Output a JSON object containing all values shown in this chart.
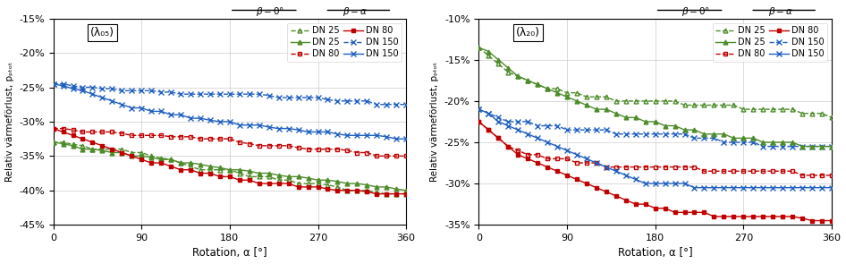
{
  "xlabel": "Rotation, α [°]",
  "ylabel": "Relativ värmeforlust, p_qtot",
  "xticks": [
    0,
    90,
    180,
    270,
    360
  ],
  "green": "#4d8c2a",
  "red": "#c00000",
  "blue": "#2060c0",
  "left": {
    "label": "(λ₀₅)",
    "ylim": [
      -45,
      -15
    ],
    "yticks": [
      -45,
      -40,
      -35,
      -30,
      -25,
      -20,
      -15
    ],
    "dn25_b0": [
      -33.0,
      -33.0,
      -33.3,
      -33.5,
      -34.0,
      -34.0,
      -34.0,
      -34.0,
      -34.5,
      -34.5,
      -35.0,
      -35.3,
      -35.5,
      -36.0,
      -36.5,
      -37.0,
      -37.0,
      -37.0,
      -37.0,
      -37.5,
      -38.0,
      -38.0,
      -38.0,
      -38.5,
      -38.5,
      -39.0,
      -39.0,
      -39.0,
      -39.2,
      -39.5,
      -40.0,
      -40.0,
      -40.0,
      -40.3,
      -40.5,
      -40.5,
      -40.5
    ],
    "dn80_b0": [
      -31.0,
      -31.0,
      -31.2,
      -31.5,
      -31.5,
      -31.5,
      -31.5,
      -31.7,
      -32.0,
      -32.0,
      -32.0,
      -32.0,
      -32.2,
      -32.2,
      -32.2,
      -32.5,
      -32.5,
      -32.5,
      -32.5,
      -33.0,
      -33.2,
      -33.5,
      -33.5,
      -33.5,
      -33.5,
      -33.8,
      -34.0,
      -34.0,
      -34.0,
      -34.0,
      -34.2,
      -34.5,
      -34.5,
      -35.0,
      -35.0,
      -35.0,
      -35.0
    ],
    "dn150_b0": [
      -24.5,
      -24.5,
      -24.8,
      -25.0,
      -25.0,
      -25.2,
      -25.2,
      -25.5,
      -25.5,
      -25.5,
      -25.5,
      -25.7,
      -25.7,
      -26.0,
      -26.0,
      -26.0,
      -26.0,
      -26.0,
      -26.0,
      -26.0,
      -26.0,
      -26.0,
      -26.2,
      -26.5,
      -26.5,
      -26.5,
      -26.5,
      -26.5,
      -26.8,
      -27.0,
      -27.0,
      -27.0,
      -27.0,
      -27.5,
      -27.5,
      -27.5,
      -27.5
    ],
    "dn25_ba": [
      -33.0,
      -33.2,
      -33.5,
      -34.0,
      -34.0,
      -34.2,
      -34.5,
      -34.5,
      -35.0,
      -35.0,
      -35.2,
      -35.5,
      -35.5,
      -36.0,
      -36.0,
      -36.2,
      -36.5,
      -36.7,
      -37.0,
      -37.0,
      -37.2,
      -37.5,
      -37.5,
      -37.8,
      -38.0,
      -38.0,
      -38.2,
      -38.5,
      -38.5,
      -38.7,
      -39.0,
      -39.0,
      -39.2,
      -39.5,
      -39.5,
      -39.8,
      -40.0
    ],
    "dn80_ba": [
      -31.0,
      -31.5,
      -32.0,
      -32.5,
      -33.0,
      -33.5,
      -34.0,
      -34.5,
      -35.0,
      -35.5,
      -36.0,
      -36.0,
      -36.5,
      -37.0,
      -37.0,
      -37.5,
      -37.5,
      -38.0,
      -38.0,
      -38.5,
      -38.5,
      -39.0,
      -39.0,
      -39.0,
      -39.0,
      -39.5,
      -39.5,
      -39.5,
      -39.8,
      -40.0,
      -40.0,
      -40.0,
      -40.2,
      -40.5,
      -40.5,
      -40.5,
      -40.5
    ],
    "dn150_ba": [
      -24.5,
      -24.8,
      -25.2,
      -25.5,
      -26.0,
      -26.5,
      -27.0,
      -27.5,
      -28.0,
      -28.0,
      -28.5,
      -28.5,
      -29.0,
      -29.0,
      -29.5,
      -29.5,
      -29.8,
      -30.0,
      -30.0,
      -30.5,
      -30.5,
      -30.5,
      -30.8,
      -31.0,
      -31.0,
      -31.2,
      -31.5,
      -31.5,
      -31.5,
      -31.8,
      -32.0,
      -32.0,
      -32.0,
      -32.0,
      -32.2,
      -32.5,
      -32.5
    ]
  },
  "right": {
    "label": "(λ₂₀)",
    "ylim": [
      -35,
      -10
    ],
    "yticks": [
      -35,
      -30,
      -25,
      -20,
      -15,
      -10
    ],
    "dn25_b0": [
      -13.5,
      -14.5,
      -15.5,
      -16.5,
      -17.0,
      -17.5,
      -18.0,
      -18.5,
      -18.5,
      -19.0,
      -19.0,
      -19.5,
      -19.5,
      -19.5,
      -20.0,
      -20.0,
      -20.0,
      -20.0,
      -20.0,
      -20.0,
      -20.0,
      -20.5,
      -20.5,
      -20.5,
      -20.5,
      -20.5,
      -20.5,
      -21.0,
      -21.0,
      -21.0,
      -21.0,
      -21.0,
      -21.0,
      -21.5,
      -21.5,
      -21.5,
      -22.0
    ],
    "dn80_b0": [
      -22.5,
      -23.5,
      -24.5,
      -25.5,
      -26.0,
      -26.5,
      -26.5,
      -27.0,
      -27.0,
      -27.0,
      -27.5,
      -27.5,
      -27.5,
      -28.0,
      -28.0,
      -28.0,
      -28.0,
      -28.0,
      -28.0,
      -28.0,
      -28.0,
      -28.0,
      -28.0,
      -28.5,
      -28.5,
      -28.5,
      -28.5,
      -28.5,
      -28.5,
      -28.5,
      -28.5,
      -28.5,
      -28.5,
      -29.0,
      -29.0,
      -29.0,
      -29.0
    ],
    "dn150_b0": [
      -21.0,
      -21.5,
      -22.0,
      -22.5,
      -22.5,
      -22.5,
      -23.0,
      -23.0,
      -23.0,
      -23.5,
      -23.5,
      -23.5,
      -23.5,
      -23.5,
      -24.0,
      -24.0,
      -24.0,
      -24.0,
      -24.0,
      -24.0,
      -24.0,
      -24.0,
      -24.5,
      -24.5,
      -24.5,
      -25.0,
      -25.0,
      -25.0,
      -25.0,
      -25.5,
      -25.5,
      -25.5,
      -25.5,
      -25.5,
      -25.5,
      -25.5,
      -25.5
    ],
    "dn25_ba": [
      -13.5,
      -14.0,
      -15.0,
      -16.0,
      -17.0,
      -17.5,
      -18.0,
      -18.5,
      -19.0,
      -19.5,
      -20.0,
      -20.5,
      -21.0,
      -21.0,
      -21.5,
      -22.0,
      -22.0,
      -22.5,
      -22.5,
      -23.0,
      -23.0,
      -23.5,
      -23.5,
      -24.0,
      -24.0,
      -24.0,
      -24.5,
      -24.5,
      -24.5,
      -25.0,
      -25.0,
      -25.0,
      -25.0,
      -25.5,
      -25.5,
      -25.5,
      -25.5
    ],
    "dn80_ba": [
      -22.5,
      -23.5,
      -24.5,
      -25.5,
      -26.5,
      -27.0,
      -27.5,
      -28.0,
      -28.5,
      -29.0,
      -29.5,
      -30.0,
      -30.5,
      -31.0,
      -31.5,
      -32.0,
      -32.5,
      -32.5,
      -33.0,
      -33.0,
      -33.5,
      -33.5,
      -33.5,
      -33.5,
      -34.0,
      -34.0,
      -34.0,
      -34.0,
      -34.0,
      -34.0,
      -34.0,
      -34.0,
      -34.0,
      -34.2,
      -34.5,
      -34.5,
      -34.5
    ],
    "dn150_ba": [
      -21.0,
      -21.5,
      -22.5,
      -23.0,
      -23.5,
      -24.0,
      -24.5,
      -25.0,
      -25.5,
      -26.0,
      -26.5,
      -27.0,
      -27.5,
      -28.0,
      -28.5,
      -29.0,
      -29.5,
      -30.0,
      -30.0,
      -30.0,
      -30.0,
      -30.0,
      -30.5,
      -30.5,
      -30.5,
      -30.5,
      -30.5,
      -30.5,
      -30.5,
      -30.5,
      -30.5,
      -30.5,
      -30.5,
      -30.5,
      -30.5,
      -30.5,
      -30.5
    ]
  }
}
